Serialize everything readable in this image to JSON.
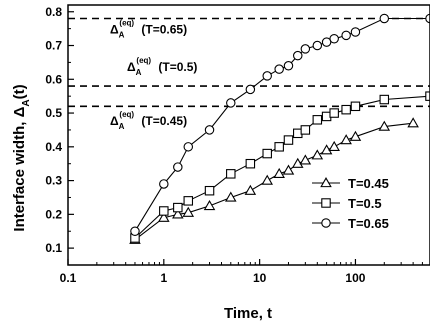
{
  "chart_data": {
    "type": "line",
    "xlabel": "Time, t",
    "ylabel": "Interface width, Δ",
    "ylabel_sub": "A",
    "ylabel_suffix": "(t)",
    "x_scale": "log",
    "xlim": [
      0.1,
      600
    ],
    "ylim": [
      0.05,
      0.82
    ],
    "x_ticks": [
      0.1,
      1,
      10,
      100
    ],
    "x_tick_labels": [
      "0.1",
      "1",
      "10",
      "100"
    ],
    "y_ticks": [
      0.1,
      0.2,
      0.3,
      0.4,
      0.5,
      0.6,
      0.7,
      0.8
    ],
    "y_tick_labels": [
      "0.1",
      "0.2",
      "0.3",
      "0.4",
      "0.5",
      "0.6",
      "0.7",
      "0.8"
    ],
    "grid": false,
    "legend_position": "bottom-right",
    "series": [
      {
        "name": "T=0.45",
        "marker": "triangle",
        "x": [
          0.5,
          1,
          1.4,
          1.8,
          3,
          5,
          8,
          12,
          16,
          20,
          25,
          30,
          40,
          50,
          60,
          80,
          100,
          200,
          400
        ],
        "y": [
          0.125,
          0.19,
          0.2,
          0.205,
          0.225,
          0.25,
          0.27,
          0.3,
          0.32,
          0.33,
          0.35,
          0.36,
          0.375,
          0.39,
          0.4,
          0.42,
          0.43,
          0.46,
          0.47
        ]
      },
      {
        "name": "T=0.5",
        "marker": "square",
        "x": [
          0.5,
          1,
          1.4,
          1.8,
          3,
          5,
          8,
          12,
          16,
          20,
          25,
          30,
          40,
          50,
          60,
          80,
          100,
          200,
          600
        ],
        "y": [
          0.13,
          0.21,
          0.22,
          0.24,
          0.27,
          0.32,
          0.35,
          0.38,
          0.4,
          0.42,
          0.44,
          0.45,
          0.48,
          0.49,
          0.5,
          0.51,
          0.52,
          0.54,
          0.55
        ]
      },
      {
        "name": "T=0.65",
        "marker": "circle",
        "x": [
          0.5,
          1,
          1.4,
          1.8,
          3,
          5,
          8,
          12,
          16,
          20,
          25,
          30,
          40,
          50,
          60,
          80,
          100,
          200,
          600
        ],
        "y": [
          0.15,
          0.29,
          0.34,
          0.4,
          0.45,
          0.53,
          0.57,
          0.61,
          0.63,
          0.64,
          0.67,
          0.69,
          0.7,
          0.71,
          0.72,
          0.73,
          0.74,
          0.78,
          0.78
        ]
      }
    ],
    "reference_lines": [
      {
        "y": 0.78,
        "label": "Δ",
        "label_sub": "A",
        "label_sup": "(eq)",
        "label_suffix": "(T=0.65)"
      },
      {
        "y": 0.58,
        "label": "Δ",
        "label_sub": "A",
        "label_sup": "(eq)",
        "label_suffix": "(T=0.5)"
      },
      {
        "y": 0.52,
        "label": "Δ",
        "label_sub": "A",
        "label_sup": "(eq)",
        "label_suffix": "(T=0.45)"
      }
    ]
  }
}
